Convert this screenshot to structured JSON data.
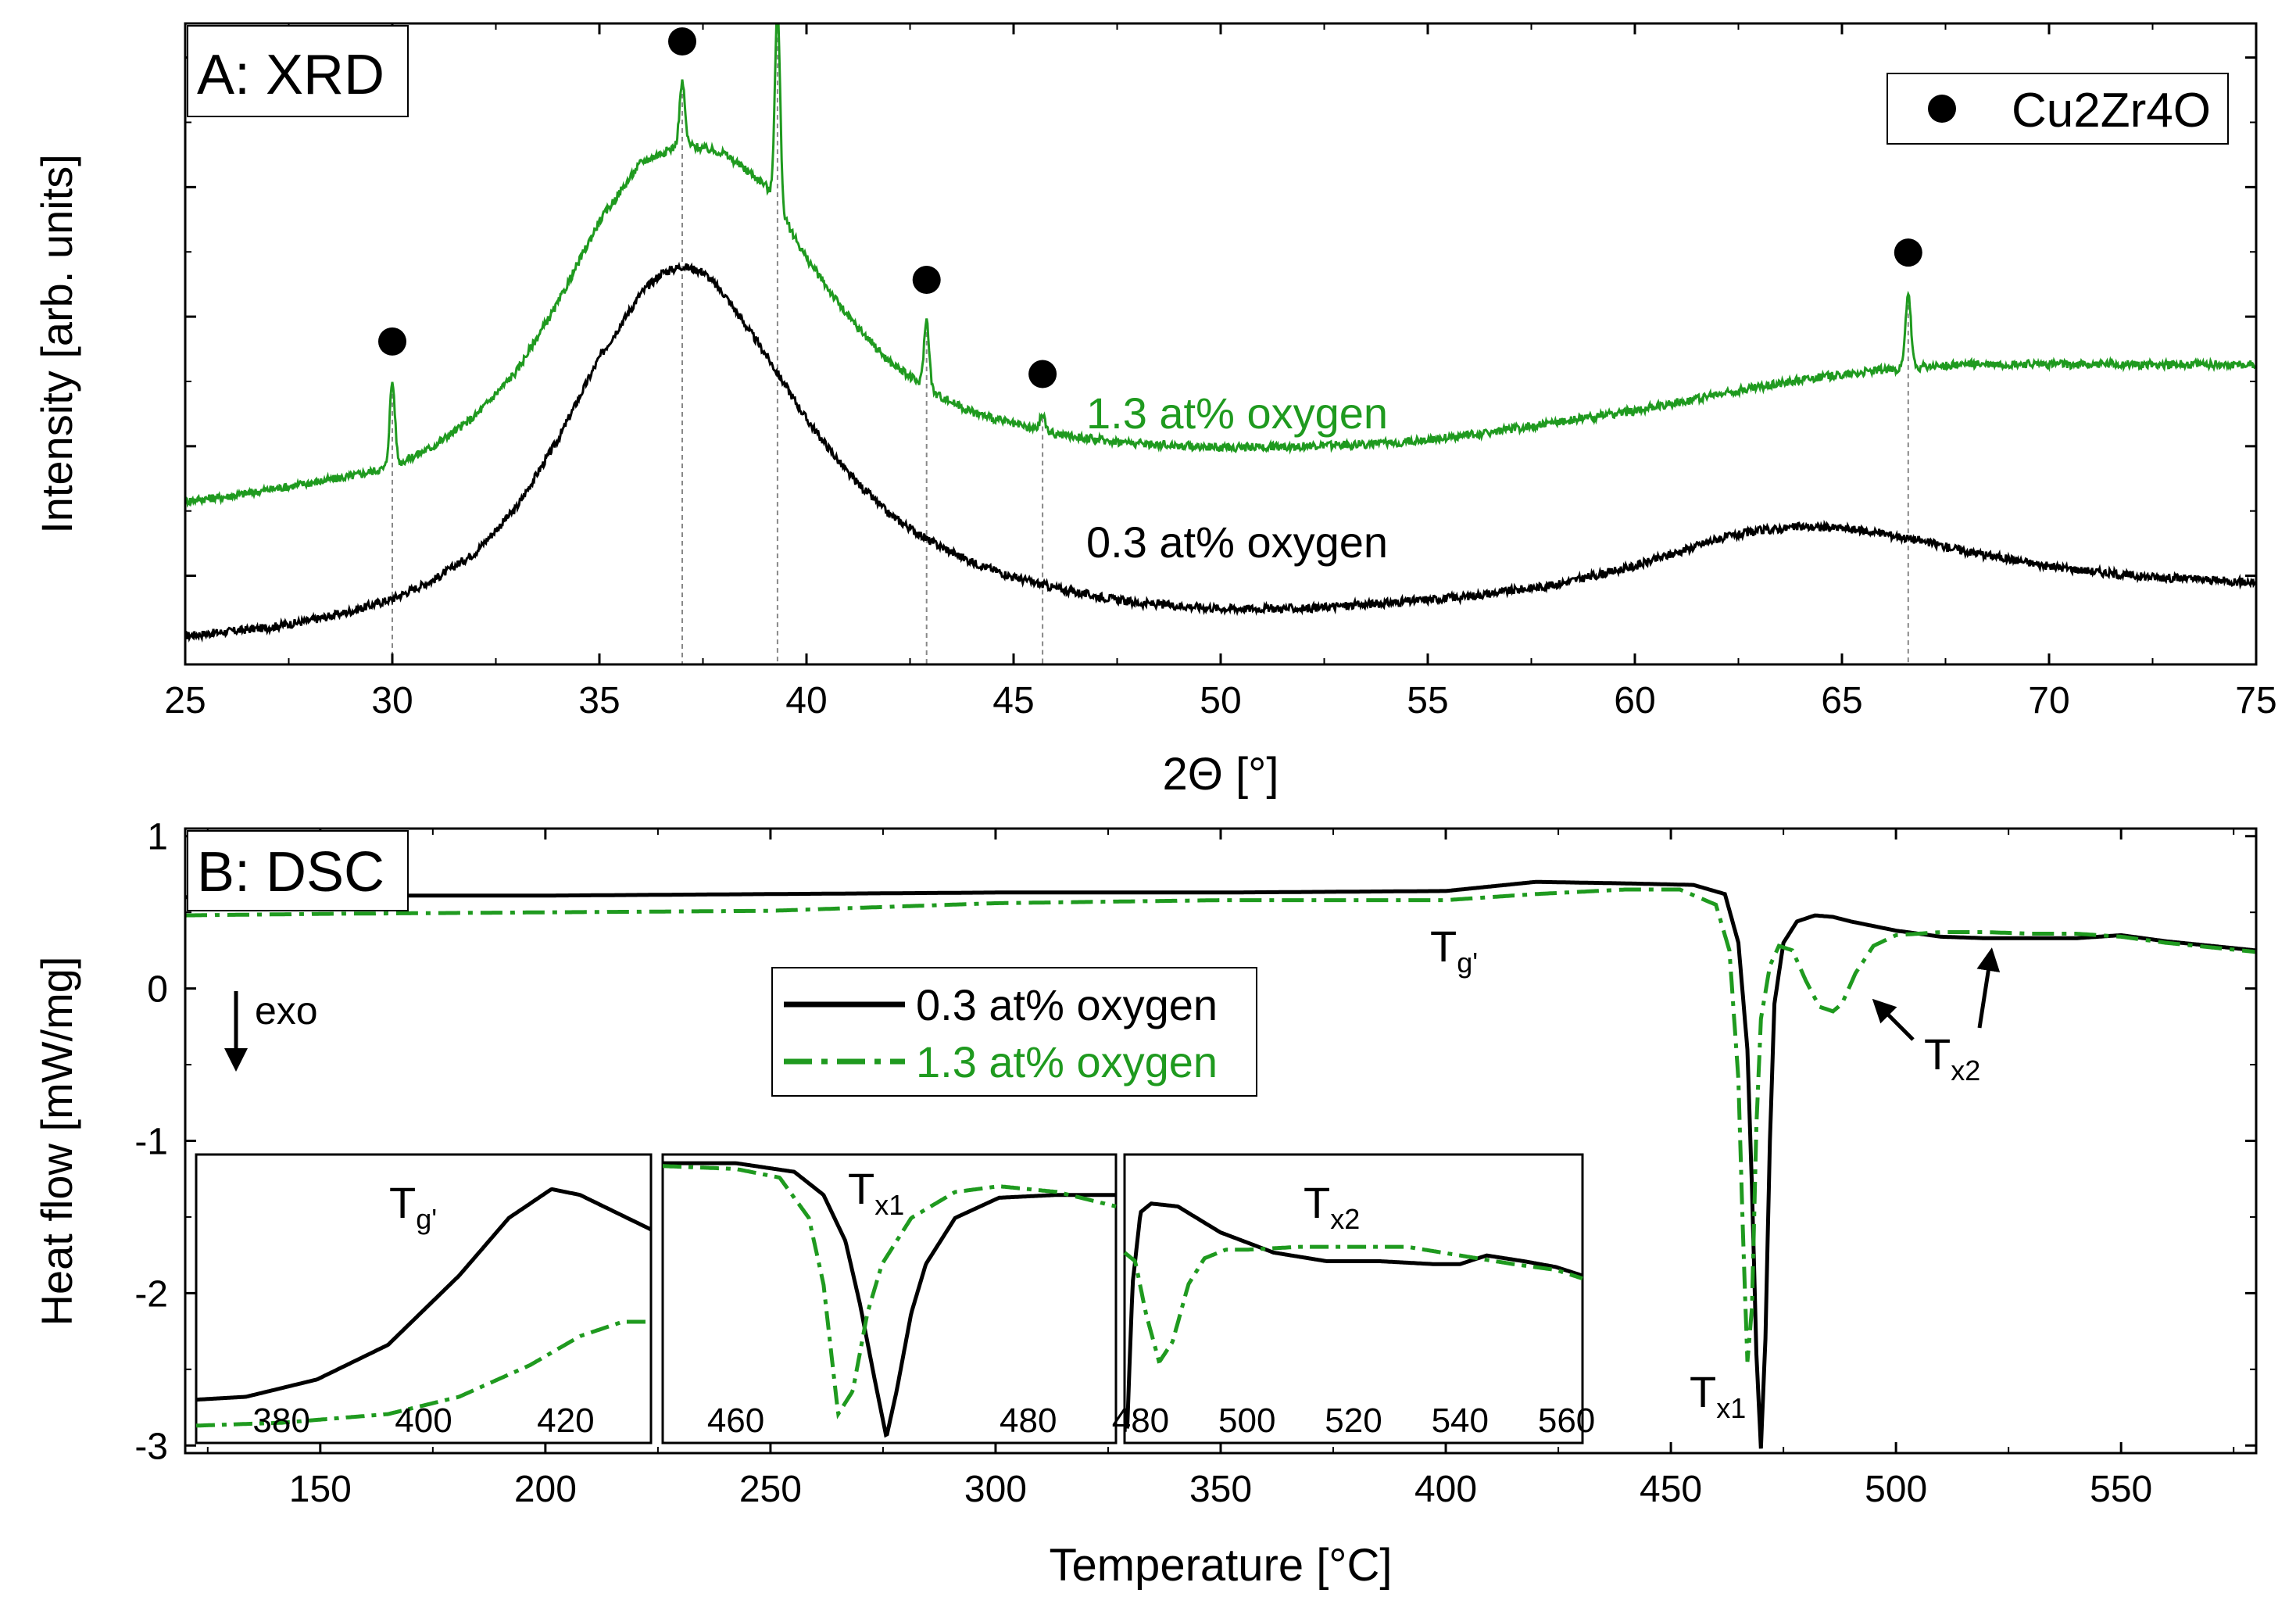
{
  "chart_data": [
    {
      "id": "xrd",
      "type": "line",
      "panel_label": "A: XRD",
      "xlabel": "2Θ [°]",
      "ylabel": "Intensity [arb. units]",
      "xlim": [
        25,
        75
      ],
      "xticks": [
        25,
        30,
        35,
        40,
        45,
        50,
        55,
        60,
        65,
        70,
        75
      ],
      "y_tick_labels": "none (arbitrary units)",
      "legend": {
        "position": "top-right",
        "entries": [
          {
            "label": "Cu2Zr4O",
            "marker": "filled-circle",
            "color": "#000000"
          }
        ]
      },
      "series": [
        {
          "name": "0.3 at% oxygen",
          "color": "#000000",
          "style": "solid",
          "x": [
            25,
            26,
            27,
            28,
            29,
            30,
            31,
            32,
            33,
            34,
            35,
            36,
            36.5,
            37,
            37.5,
            38,
            39,
            40,
            41,
            42,
            43,
            44,
            45,
            46,
            47,
            48,
            50,
            52,
            54,
            56,
            58,
            60,
            61,
            62,
            63,
            64,
            65,
            66,
            67,
            68,
            70,
            72,
            75
          ],
          "y": [
            0.11,
            0.14,
            0.17,
            0.22,
            0.29,
            0.38,
            0.52,
            0.72,
            1.05,
            1.55,
            2.15,
            2.62,
            2.77,
            2.82,
            2.78,
            2.62,
            2.18,
            1.7,
            1.3,
            1.0,
            0.8,
            0.65,
            0.54,
            0.46,
            0.4,
            0.35,
            0.31,
            0.31,
            0.35,
            0.4,
            0.48,
            0.62,
            0.72,
            0.82,
            0.88,
            0.91,
            0.9,
            0.86,
            0.8,
            0.73,
            0.62,
            0.55,
            0.5
          ]
        },
        {
          "name": "1.3 at% oxygen",
          "color": "#1f9a1f",
          "style": "solid",
          "x": [
            25,
            26,
            27,
            28,
            29,
            30,
            31,
            32,
            33,
            34,
            35,
            36,
            37,
            38,
            39,
            40,
            41,
            42,
            43,
            44,
            45,
            46,
            47,
            48,
            50,
            52,
            54,
            56,
            58,
            60,
            62,
            64,
            66,
            68,
            70,
            72,
            75
          ],
          "y": [
            1.1,
            1.13,
            1.18,
            1.23,
            1.28,
            1.35,
            1.5,
            1.72,
            2.05,
            2.55,
            3.15,
            3.58,
            3.72,
            3.65,
            3.42,
            2.88,
            2.45,
            2.12,
            1.9,
            1.75,
            1.66,
            1.59,
            1.55,
            1.52,
            1.49,
            1.5,
            1.52,
            1.58,
            1.67,
            1.76,
            1.88,
            1.99,
            2.06,
            2.1,
            2.1,
            2.1,
            2.1
          ]
        }
      ],
      "peaks": [
        {
          "two_theta": 30.0,
          "height": 0.62
        },
        {
          "two_theta": 37.0,
          "height": 0.45
        },
        {
          "two_theta": 39.3,
          "height": 1.45
        },
        {
          "two_theta": 42.9,
          "height": 0.5
        },
        {
          "two_theta": 45.7,
          "height": 0.12
        },
        {
          "two_theta": 66.6,
          "height": 0.55
        }
      ],
      "annotations": [
        "1.3 at% oxygen",
        "0.3 at% oxygen"
      ]
    },
    {
      "id": "dsc",
      "type": "line",
      "panel_label": "B: DSC",
      "xlabel": "Temperature [°C]",
      "ylabel": "Heat flow [mW/mg]",
      "xlim": [
        120,
        580
      ],
      "ylim": [
        -3.05,
        1.05
      ],
      "xticks": [
        150,
        200,
        250,
        300,
        350,
        400,
        450,
        500,
        550
      ],
      "yticks": [
        1,
        0,
        -1,
        -2,
        -3
      ],
      "legend": {
        "position": "center",
        "entries": [
          {
            "label": "0.3 at% oxygen",
            "color": "#000000",
            "style": "solid"
          },
          {
            "label": "1.3 at% oxygen",
            "color": "#1f9a1f",
            "style": "dash-dot"
          }
        ]
      },
      "annotations": {
        "exo": "exo",
        "tg": {
          "main": "T",
          "sub": "g'"
        },
        "tx1": {
          "main": "T",
          "sub": "x1"
        },
        "tx2": {
          "main": "T",
          "sub": "x2"
        }
      },
      "series": [
        {
          "name": "0.3 at% oxygen",
          "color": "#000000",
          "style": "solid",
          "x": [
            120,
            150,
            200,
            250,
            300,
            350,
            400,
            420,
            440,
            455,
            462,
            465,
            467,
            468,
            469,
            470,
            471,
            472,
            473,
            475,
            478,
            482,
            486,
            490,
            500,
            510,
            520,
            530,
            540,
            550,
            560,
            570,
            580
          ],
          "y": [
            0.6,
            0.61,
            0.61,
            0.62,
            0.63,
            0.63,
            0.64,
            0.7,
            0.69,
            0.68,
            0.62,
            0.3,
            -0.4,
            -1.3,
            -2.4,
            -3.02,
            -2.3,
            -1.0,
            -0.1,
            0.3,
            0.44,
            0.48,
            0.47,
            0.44,
            0.38,
            0.34,
            0.33,
            0.33,
            0.33,
            0.35,
            0.31,
            0.28,
            0.25
          ]
        },
        {
          "name": "1.3 at% oxygen",
          "color": "#1f9a1f",
          "style": "dash-dot",
          "x": [
            120,
            150,
            200,
            250,
            300,
            350,
            400,
            420,
            440,
            452,
            460,
            463,
            465,
            466,
            467,
            468,
            469,
            470,
            472,
            474,
            477,
            480,
            483,
            486,
            488,
            491,
            495,
            500,
            510,
            520,
            530,
            540,
            550,
            560,
            570,
            580
          ],
          "y": [
            0.48,
            0.49,
            0.5,
            0.51,
            0.56,
            0.58,
            0.58,
            0.62,
            0.65,
            0.65,
            0.55,
            0.25,
            -0.6,
            -1.6,
            -2.45,
            -2.1,
            -0.9,
            -0.2,
            0.15,
            0.28,
            0.25,
            0.05,
            -0.12,
            -0.15,
            -0.1,
            0.1,
            0.28,
            0.35,
            0.37,
            0.37,
            0.36,
            0.36,
            0.34,
            0.3,
            0.27,
            0.24
          ]
        }
      ],
      "insets": [
        {
          "id": "inset-tg",
          "title": {
            "main": "T",
            "sub": "g'"
          },
          "xlim": [
            368,
            432
          ],
          "xticks": [
            380,
            400,
            420
          ],
          "series": [
            {
              "name": "0.3 at% oxygen",
              "x": [
                368,
                375,
                385,
                395,
                405,
                412,
                418,
                422,
                427,
                432
              ],
              "y": [
                0.15,
                0.16,
                0.22,
                0.34,
                0.58,
                0.78,
                0.88,
                0.86,
                0.8,
                0.74
              ]
            },
            {
              "name": "1.3 at% oxygen",
              "x": [
                368,
                380,
                395,
                405,
                415,
                422,
                428,
                432
              ],
              "y": [
                0.06,
                0.07,
                0.1,
                0.16,
                0.27,
                0.37,
                0.42,
                0.42
              ]
            }
          ]
        },
        {
          "id": "inset-tx1",
          "title": {
            "main": "T",
            "sub": "x1"
          },
          "xlim": [
            455,
            486
          ],
          "xticks": [
            460,
            480
          ],
          "series": [
            {
              "name": "0.3 at% oxygen",
              "x": [
                455,
                460,
                464,
                466,
                467.5,
                468.5,
                469.5,
                470.3,
                471,
                472,
                473,
                475,
                478,
                482,
                486
              ],
              "y": [
                0.97,
                0.97,
                0.94,
                0.86,
                0.7,
                0.48,
                0.22,
                0.02,
                0.18,
                0.45,
                0.62,
                0.78,
                0.85,
                0.86,
                0.86
              ]
            },
            {
              "name": "1.3 at% oxygen",
              "x": [
                455,
                460,
                463,
                465,
                466,
                467,
                468,
                469,
                470,
                472,
                475,
                478,
                482,
                486
              ],
              "y": [
                0.96,
                0.95,
                0.92,
                0.78,
                0.55,
                0.1,
                0.18,
                0.45,
                0.62,
                0.78,
                0.87,
                0.89,
                0.87,
                0.82
              ]
            }
          ]
        },
        {
          "id": "inset-tx2",
          "title": {
            "main": "T",
            "sub": "x2"
          },
          "xlim": [
            477,
            563
          ],
          "xticks": [
            480,
            500,
            520,
            540,
            560
          ],
          "series": [
            {
              "name": "0.3 at% oxygen",
              "x": [
                477.5,
                478.5,
                480,
                482,
                487,
                495,
                505,
                515,
                525,
                535,
                540,
                545,
                552,
                558,
                563
              ],
              "y": [
                0.05,
                0.55,
                0.8,
                0.83,
                0.82,
                0.73,
                0.66,
                0.63,
                0.63,
                0.62,
                0.62,
                0.65,
                0.63,
                0.61,
                0.58
              ]
            },
            {
              "name": "1.3 at% oxygen",
              "x": [
                477,
                479,
                481,
                483.5,
                486,
                489,
                492,
                496,
                500,
                510,
                520,
                530,
                540,
                550,
                558,
                563
              ],
              "y": [
                0.66,
                0.63,
                0.45,
                0.28,
                0.35,
                0.55,
                0.64,
                0.67,
                0.67,
                0.68,
                0.68,
                0.68,
                0.65,
                0.62,
                0.6,
                0.57
              ]
            }
          ]
        }
      ]
    }
  ]
}
